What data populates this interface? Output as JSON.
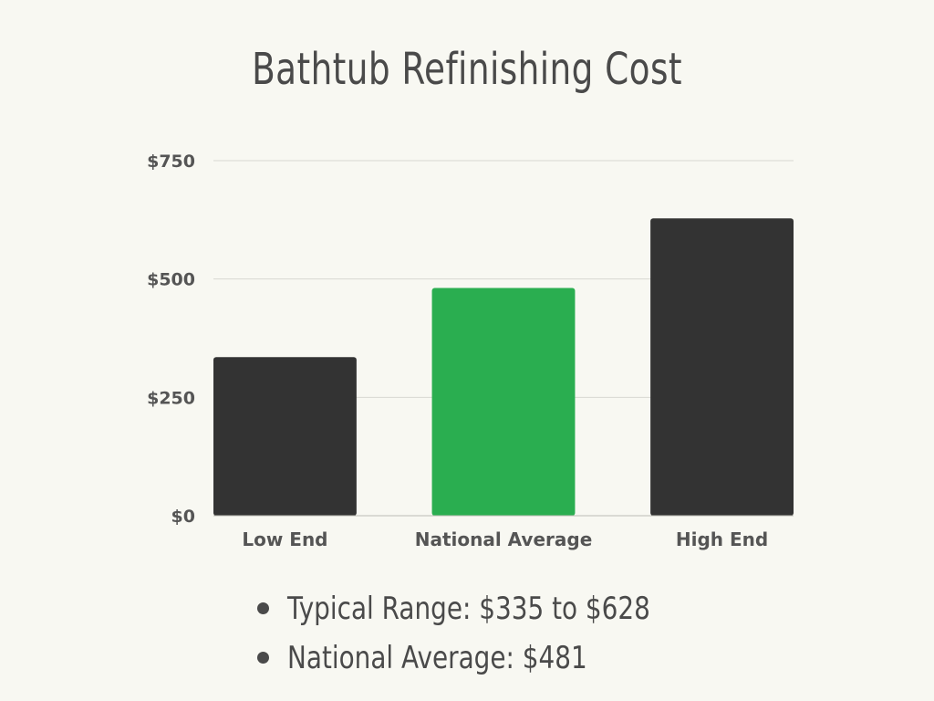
{
  "chart_data": {
    "type": "bar",
    "title": "Bathtub Refinishing Cost",
    "categories": [
      "Low End",
      "National Average",
      "High End"
    ],
    "values": [
      335,
      481,
      628
    ],
    "bar_colors": [
      "#333333",
      "#2aae50",
      "#333333"
    ],
    "ylim": [
      0,
      750
    ],
    "yticks": [
      0,
      250,
      500,
      750
    ],
    "ytick_labels": [
      "$0",
      "$250",
      "$500",
      "$750"
    ],
    "grid": true
  },
  "notes": [
    "Typical Range: $335 to $628",
    "National Average: $481"
  ],
  "colors": {
    "background": "#f8f8f2",
    "text": "#4a4a4a",
    "grid": "#d8d8d2"
  }
}
